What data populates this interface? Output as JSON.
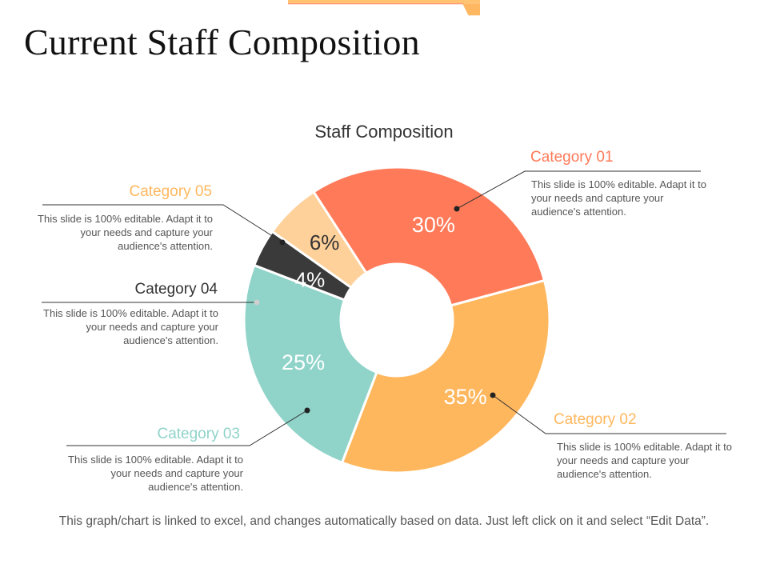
{
  "slide": {
    "title": "Current Staff Composition",
    "footnote": "This graph/chart is linked to excel, and changes automatically based on data. Just left click on it and select “Edit Data”."
  },
  "theme": {
    "accent_light": "#FFC372",
    "accent_dark": "#FF7F5C",
    "leader_line": "#333333"
  },
  "chart_data": {
    "type": "pie",
    "style": "donut",
    "title": "Staff Composition",
    "unit": "%",
    "categories": [
      "Category 01",
      "Category 02",
      "Category 03",
      "Category 04",
      "Category 05"
    ],
    "values": [
      30,
      35,
      25,
      4,
      6
    ],
    "value_labels": [
      "30%",
      "35%",
      "25%",
      "4%",
      "6%"
    ],
    "colors": [
      "#FF7A59",
      "#FFB75E",
      "#8FD3C9",
      "#3A3A3A",
      "#FFD19A"
    ],
    "label_colors": [
      "#FF7A59",
      "#FFB75E",
      "#8FD3C9",
      "#333333",
      "#FFB75E"
    ],
    "descriptions": [
      "This slide is 100% editable. Adapt it to your needs and capture your audience's attention.",
      "This slide is 100% editable. Adapt it to your needs and capture your audience's attention.",
      "This slide is 100% editable. Adapt it to your needs and capture your audience's attention.",
      "This slide is 100% editable. Adapt it to your needs and capture your audience's attention.",
      "This slide is 100% editable. Adapt it to your needs and capture your audience's attention."
    ]
  }
}
